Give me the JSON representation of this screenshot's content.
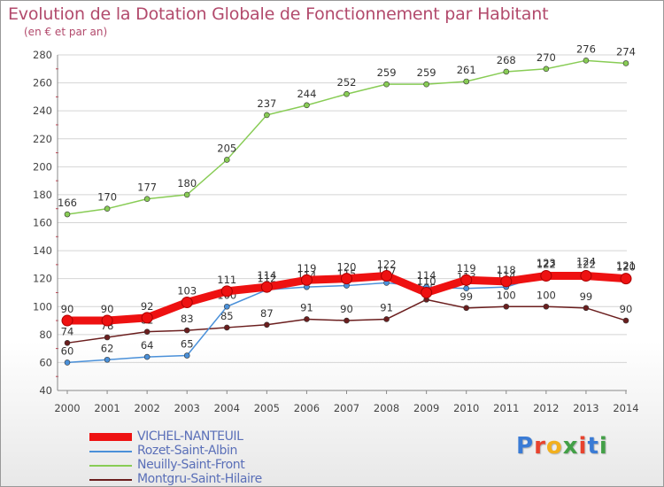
{
  "title": "Evolution de la Dotation Globale de Fonctionnement par Habitant",
  "subtitle": "(en € et par an)",
  "logo_text": "Proxiti",
  "colors": {
    "title": "#b24a6c",
    "legend_text": "#5a6fb8",
    "grid": "#d4d4d4",
    "axis_text": "#444444"
  },
  "chart_data": {
    "type": "line",
    "title": "Evolution de la Dotation Globale de Fonctionnement par Habitant",
    "ylabel": "(en € et par an)",
    "xlabel": "",
    "ylim": [
      40,
      280
    ],
    "yticks": [
      40,
      60,
      80,
      100,
      120,
      140,
      160,
      180,
      200,
      220,
      240,
      260,
      280
    ],
    "categories": [
      "2000",
      "2001",
      "2002",
      "2003",
      "2004",
      "2005",
      "2006",
      "2007",
      "2008",
      "2009",
      "2010",
      "2011",
      "2012",
      "2013",
      "2014"
    ],
    "grid": true,
    "legend_position": "bottom",
    "series": [
      {
        "name": "Neuilly-Saint-Front",
        "color": "#88cc55",
        "values": [
          166,
          170,
          177,
          180,
          205,
          237,
          244,
          252,
          259,
          259,
          261,
          268,
          270,
          276,
          274
        ]
      },
      {
        "name": "Montgru-Saint-Hilaire",
        "color": "#6b1e1e",
        "values": [
          74,
          78,
          82,
          83,
          85,
          87,
          91,
          90,
          91,
          105,
          99,
          100,
          100,
          99,
          90
        ]
      },
      {
        "name": "Rozet-Saint-Albin",
        "color": "#4a90d9",
        "values": [
          60,
          62,
          64,
          65,
          100,
          112,
          114,
          115,
          117,
          114,
          113,
          114,
          123,
          124,
          121
        ]
      },
      {
        "name": "VICHEL-NANTEUIL",
        "color": "#ee1111",
        "values": [
          90,
          90,
          92,
          103,
          111,
          114,
          119,
          120,
          122,
          110,
          119,
          118,
          122,
          122,
          120
        ]
      }
    ],
    "legend_order": [
      "VICHEL-NANTEUIL",
      "Rozet-Saint-Albin",
      "Neuilly-Saint-Front",
      "Montgru-Saint-Hilaire"
    ]
  }
}
